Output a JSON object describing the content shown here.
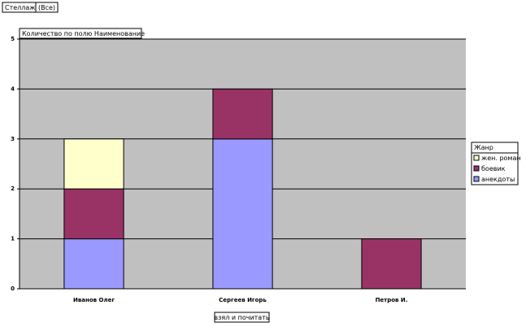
{
  "filter": {
    "field": "Стеллаж",
    "value": "(Все)"
  },
  "chart_data": {
    "type": "stacked_bar",
    "title": "Количество по полю Наименование",
    "x_label": "взял и почитать",
    "categories": [
      "Иванов Олег",
      "Сергеев Игорь",
      "Петров И."
    ],
    "legend_title": "Жанр",
    "series": [
      {
        "name": "анекдоты",
        "color": "#9999ff",
        "values": [
          1,
          3,
          null
        ]
      },
      {
        "name": "боевик",
        "color": "#993366",
        "values": [
          1,
          1,
          1
        ]
      },
      {
        "name": "жен. роман",
        "color": "#ffffcc",
        "values": [
          1,
          null,
          null
        ]
      }
    ],
    "ylim": [
      0,
      5
    ],
    "yticks": [
      0,
      1,
      2,
      3,
      4,
      5
    ],
    "grid": true,
    "legend": "right"
  }
}
